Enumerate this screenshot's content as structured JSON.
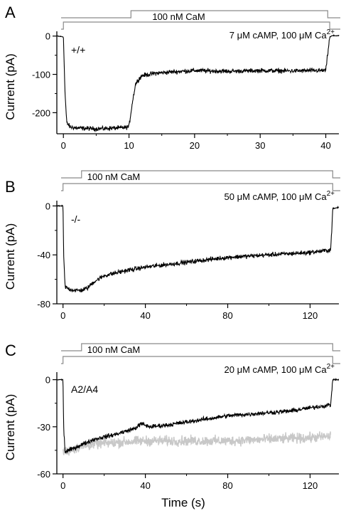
{
  "figure": {
    "x_axis_label": "Time (s)"
  },
  "chart_data": [
    {
      "type": "line",
      "panel_label": "A",
      "inner_label": "+/+",
      "xlabel": "",
      "ylabel": "Current (pA)",
      "xlim": [
        -1,
        42
      ],
      "ylim": [
        -255,
        5
      ],
      "xticks": [
        0,
        10,
        20,
        30,
        40
      ],
      "yticks": [
        0,
        -100,
        -200
      ],
      "stimulus_bars": [
        {
          "label": "100 nM CaM",
          "start": 10.3,
          "end": 40.3
        },
        {
          "label": "7 μM cAMP, 100 μM Ca",
          "superscript": "2+",
          "start": 0.0,
          "end": 40.6
        }
      ],
      "series": [
        {
          "color": "#000000",
          "x": [
            -1,
            0,
            0.25,
            0.5,
            1,
            2,
            5,
            8,
            9.5,
            10,
            10.5,
            11,
            11.5,
            12,
            14,
            17,
            20,
            25,
            30,
            35,
            38,
            40,
            40.2,
            40.6,
            41,
            42
          ],
          "y": [
            0,
            -2,
            -150,
            -225,
            -237,
            -240,
            -242,
            -240,
            -239,
            -236,
            -175,
            -125,
            -112,
            -103,
            -97,
            -93,
            -90,
            -92,
            -90,
            -91,
            -90,
            -90,
            -60,
            -3,
            1,
            1
          ]
        }
      ]
    },
    {
      "type": "line",
      "panel_label": "B",
      "inner_label": "-/-",
      "xlabel": "",
      "ylabel": "Current (pA)",
      "xlim": [
        -3,
        134
      ],
      "ylim": [
        -80,
        2
      ],
      "xticks": [
        0,
        40,
        80,
        120
      ],
      "yticks": [
        0,
        -40,
        -80
      ],
      "stimulus_bars": [
        {
          "label": "100 nM CaM",
          "start": 9.0,
          "end": 131.0
        },
        {
          "label": "50 μM cAMP, 100 μM Ca",
          "superscript": "2+",
          "start": 0.0,
          "end": 131.0
        }
      ],
      "series": [
        {
          "color": "#000000",
          "x": [
            -3,
            0,
            0.3,
            1,
            3,
            6,
            9,
            12,
            15,
            20,
            30,
            40,
            50,
            60,
            70,
            80,
            90,
            100,
            110,
            120,
            125,
            130,
            130.5,
            131,
            132,
            134
          ],
          "y": [
            0,
            0,
            -40,
            -66,
            -68,
            -69,
            -69,
            -67,
            -62,
            -57,
            -53,
            -50,
            -48,
            -46,
            -44,
            -42,
            -41,
            -40,
            -39,
            -38,
            -37,
            -36,
            -20,
            -2,
            -2,
            -1
          ]
        }
      ]
    },
    {
      "type": "line",
      "panel_label": "C",
      "inner_label": "A2/A4",
      "xlabel": "Time (s)",
      "ylabel": "Current (pA)",
      "xlim": [
        -3,
        134
      ],
      "ylim": [
        -60,
        3
      ],
      "xticks": [
        0,
        40,
        80,
        120
      ],
      "yticks": [
        0,
        -30,
        -60
      ],
      "stimulus_bars": [
        {
          "label": "100 nM CaM",
          "start": 9.0,
          "end": 131.0
        },
        {
          "label": "20 μM cAMP, 100 μM Ca",
          "superscript": "2+",
          "start": 0.0,
          "end": 131.0
        }
      ],
      "series": [
        {
          "color": "#c8c8c8",
          "x": [
            0,
            1,
            3,
            8,
            15,
            25,
            40,
            60,
            80,
            100,
            120,
            130
          ],
          "y": [
            -46,
            -46,
            -45,
            -43,
            -41,
            -40,
            -39,
            -39,
            -39,
            -38,
            -37,
            -36
          ]
        },
        {
          "color": "#000000",
          "x": [
            -3,
            0,
            0.3,
            1,
            3,
            8,
            15,
            25,
            35,
            38,
            42,
            50,
            60,
            70,
            80,
            90,
            100,
            110,
            120,
            125,
            130,
            130.5,
            131,
            132,
            134
          ],
          "y": [
            0,
            0,
            -30,
            -46,
            -45,
            -42,
            -38,
            -35,
            -31,
            -28,
            -30,
            -29,
            -27,
            -25,
            -23,
            -22,
            -21,
            -20,
            -18,
            -17,
            -16,
            -8,
            0,
            0,
            0
          ]
        }
      ]
    }
  ]
}
